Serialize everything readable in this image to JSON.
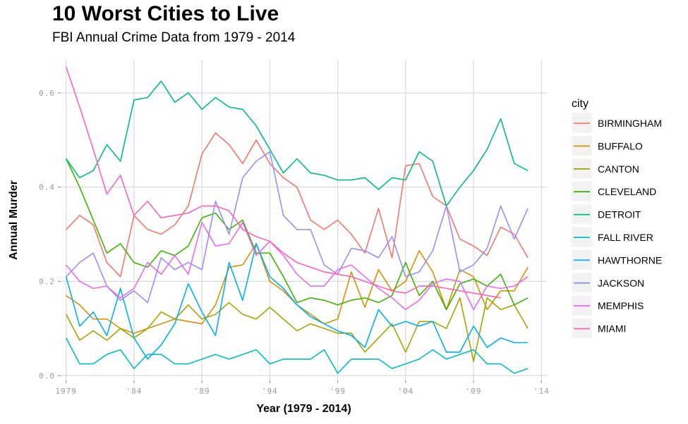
{
  "chart_data": {
    "type": "line",
    "title": "10 Worst Cities to Live",
    "subtitle": "FBI Annual Crime Data from 1979 - 2014",
    "xlabel": "Year (1979 - 2014)",
    "ylabel": "Annual Murder",
    "xlim": [
      1978.6,
      2014.4
    ],
    "ylim": [
      -0.01,
      0.67
    ],
    "x_ticks": [
      1979,
      1984,
      1989,
      1994,
      1999,
      2004,
      2009,
      2014
    ],
    "x_tick_labels": [
      "1979",
      "'84",
      "'89",
      "'94",
      "'99",
      "'04",
      "'09",
      "'14"
    ],
    "y_ticks": [
      0.0,
      0.2,
      0.4,
      0.6
    ],
    "y_tick_labels": [
      "0.0",
      "0.2",
      "0.4",
      "0.6"
    ],
    "grid": true,
    "legend_position": "right",
    "legend_title": "city",
    "series": [
      {
        "name": "BIRMINGHAM",
        "color": "#F8766D",
        "start": 1979,
        "values": [
          0.31,
          0.34,
          0.32,
          0.24,
          0.21,
          0.34,
          0.31,
          0.3,
          0.32,
          0.36,
          0.47,
          0.515,
          0.49,
          0.45,
          0.5,
          0.45,
          0.42,
          0.4,
          0.33,
          0.31,
          0.33,
          0.3,
          0.26,
          0.355,
          0.25,
          0.445,
          0.45,
          0.38,
          0.36,
          0.29,
          0.275,
          0.255,
          0.315,
          0.3,
          0.25
        ]
      },
      {
        "name": "BUFFALO",
        "color": "#D89000",
        "start": 1979,
        "values": [
          0.17,
          0.15,
          0.12,
          0.12,
          0.1,
          0.09,
          0.1,
          0.11,
          0.12,
          0.115,
          0.11,
          0.15,
          0.23,
          0.235,
          0.28,
          0.2,
          0.18,
          0.15,
          0.13,
          0.11,
          0.12,
          0.22,
          0.145,
          0.225,
          0.18,
          0.2,
          0.265,
          0.22,
          0.14,
          0.225,
          0.21,
          0.14,
          0.18,
          0.18,
          0.23
        ]
      },
      {
        "name": "CANTON",
        "color": "#A3A500",
        "start": 1979,
        "values": [
          0.13,
          0.075,
          0.095,
          0.075,
          0.1,
          0.08,
          0.1,
          0.135,
          0.12,
          0.15,
          0.12,
          0.13,
          0.155,
          0.13,
          0.12,
          0.145,
          0.12,
          0.095,
          0.11,
          0.1,
          0.09,
          0.09,
          0.05,
          0.08,
          0.11,
          0.05,
          0.115,
          0.115,
          0.1,
          0.165,
          0.03,
          0.165,
          0.14,
          0.15,
          0.1
        ]
      },
      {
        "name": "CLEVELAND",
        "color": "#39B600",
        "start": 1979,
        "values": [
          0.46,
          0.4,
          0.33,
          0.26,
          0.28,
          0.24,
          0.23,
          0.265,
          0.255,
          0.275,
          0.335,
          0.345,
          0.31,
          0.33,
          0.26,
          0.26,
          0.21,
          0.155,
          0.165,
          0.16,
          0.15,
          0.16,
          0.165,
          0.155,
          0.17,
          0.24,
          0.17,
          0.2,
          0.14,
          0.195,
          0.205,
          0.19,
          0.215,
          0.15,
          0.165
        ]
      },
      {
        "name": "DETROIT",
        "color": "#00BF7D",
        "start": 1979,
        "values": [
          0.46,
          0.42,
          0.435,
          0.49,
          0.455,
          0.585,
          0.59,
          0.625,
          0.58,
          0.6,
          0.565,
          0.59,
          0.57,
          0.565,
          0.53,
          0.48,
          0.43,
          0.46,
          0.43,
          0.425,
          0.415,
          0.415,
          0.42,
          0.395,
          0.42,
          0.415,
          0.475,
          0.455,
          0.36,
          0.4,
          0.435,
          0.48,
          0.545,
          0.45,
          0.435
        ]
      },
      {
        "name": "FALL RIVER",
        "color": "#00BFC4",
        "start": 1979,
        "values": [
          0.08,
          0.025,
          0.025,
          0.045,
          0.055,
          0.015,
          0.045,
          0.045,
          0.025,
          0.025,
          0.035,
          0.045,
          0.035,
          0.045,
          0.055,
          0.025,
          0.035,
          0.035,
          0.035,
          0.055,
          0.005,
          0.035,
          0.035,
          0.035,
          0.015,
          0.025,
          0.035,
          0.055,
          0.035,
          0.045,
          0.055,
          0.025,
          0.025,
          0.005,
          0.015
        ]
      },
      {
        "name": "HAWTHORNE",
        "color": "#00B0F6",
        "start": 1979,
        "values": [
          0.21,
          0.105,
          0.135,
          0.085,
          0.185,
          0.08,
          0.035,
          0.065,
          0.11,
          0.195,
          0.135,
          0.085,
          0.24,
          0.16,
          0.28,
          0.21,
          0.185,
          0.15,
          0.125,
          0.11,
          0.095,
          0.085,
          0.06,
          0.14,
          0.105,
          0.115,
          0.105,
          0.115,
          0.05,
          0.05,
          0.105,
          0.06,
          0.08,
          0.07,
          0.07
        ]
      },
      {
        "name": "JACKSON",
        "color": "#9590FF",
        "start": 1979,
        "values": [
          0.21,
          0.24,
          0.26,
          0.19,
          0.16,
          0.18,
          0.155,
          0.25,
          0.225,
          0.24,
          0.225,
          0.37,
          0.3,
          0.42,
          0.455,
          0.475,
          0.34,
          0.31,
          0.31,
          0.235,
          0.215,
          0.27,
          0.265,
          0.25,
          0.295,
          0.21,
          0.22,
          0.265,
          0.36,
          0.22,
          0.235,
          0.27,
          0.36,
          0.29,
          0.355
        ]
      },
      {
        "name": "MEMPHIS",
        "color": "#E76BF3",
        "start": 1979,
        "values": [
          0.235,
          0.2,
          0.185,
          0.19,
          0.165,
          0.185,
          0.24,
          0.215,
          0.255,
          0.215,
          0.325,
          0.275,
          0.28,
          0.325,
          0.255,
          0.285,
          0.255,
          0.215,
          0.19,
          0.19,
          0.225,
          0.235,
          0.21,
          0.185,
          0.165,
          0.14,
          0.16,
          0.195,
          0.205,
          0.2,
          0.14,
          0.19,
          0.185,
          0.19,
          0.21
        ]
      },
      {
        "name": "MIAMI",
        "color": "#FF62BC",
        "start": 1979,
        "values": [
          0.655,
          0.57,
          0.48,
          0.385,
          0.425,
          0.34,
          0.37,
          0.335,
          0.34,
          0.345,
          0.36,
          0.36,
          0.35,
          0.31,
          0.295,
          0.285,
          0.26,
          0.24,
          0.23,
          0.22,
          0.215,
          0.21,
          0.2,
          0.19,
          0.18,
          0.175,
          0.19,
          0.19,
          0.185,
          0.18,
          0.175,
          0.17,
          0.165
        ]
      }
    ]
  }
}
